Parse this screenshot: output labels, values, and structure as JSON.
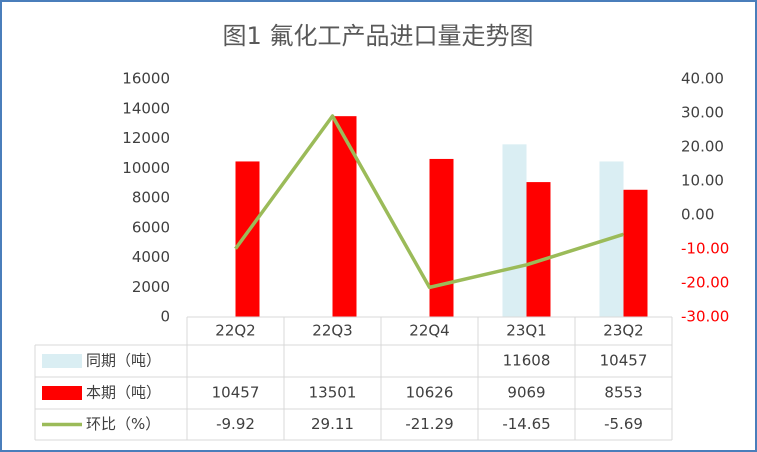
{
  "chart_data": {
    "type": "bar",
    "title": "图1 氟化工产品进口量走势图",
    "categories": [
      "22Q2",
      "22Q3",
      "22Q4",
      "23Q1",
      "23Q2"
    ],
    "series": [
      {
        "name": "同期（吨）",
        "color": "#daeef3",
        "values": [
          null,
          null,
          null,
          11608,
          10457
        ]
      },
      {
        "name": "本期（吨）",
        "color": "#ff0000",
        "values": [
          10457,
          13501,
          10626,
          9069,
          8553
        ]
      },
      {
        "name": "环比（%）",
        "color": "#9bbb59",
        "type": "line",
        "axis": "y2",
        "values": [
          -9.92,
          29.11,
          -21.29,
          -14.65,
          -5.69
        ]
      }
    ],
    "ylim": [
      0,
      16000
    ],
    "yticks": [
      0,
      2000,
      4000,
      6000,
      8000,
      10000,
      12000,
      14000,
      16000
    ],
    "y2lim": [
      -30,
      40
    ],
    "y2ticks": [
      {
        "value": -30,
        "label": "-30.00"
      },
      {
        "value": -20,
        "label": "-20.00"
      },
      {
        "value": -10,
        "label": "-10.00"
      },
      {
        "value": 0,
        "label": "0.00"
      },
      {
        "value": 10,
        "label": "10.00"
      },
      {
        "value": 20,
        "label": "20.00"
      },
      {
        "value": 30,
        "label": "30.00"
      },
      {
        "value": 40,
        "label": "40.00"
      }
    ],
    "y2_negative_color": "#ff0000",
    "data_table": true
  }
}
